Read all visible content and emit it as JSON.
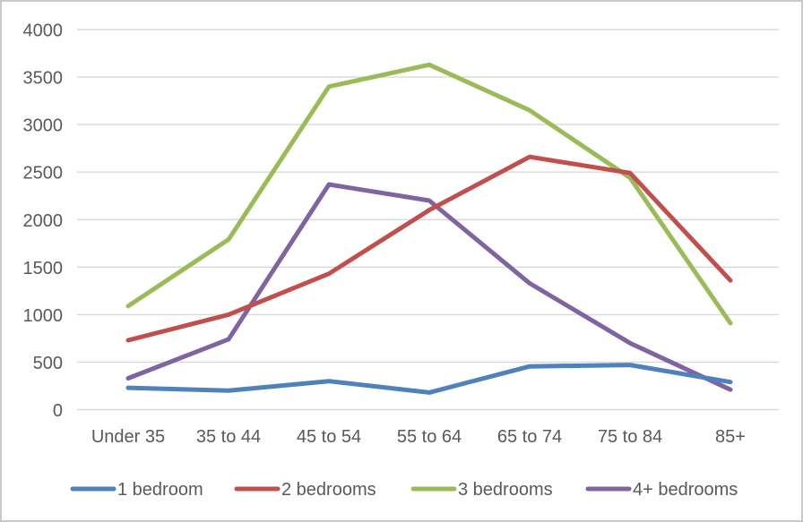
{
  "chart_data": {
    "type": "line",
    "title": "",
    "categories": [
      "Under 35",
      "35 to 44",
      "45 to 54",
      "55 to 64",
      "65 to 74",
      "75 to 84",
      "85+"
    ],
    "series": [
      {
        "name": "1 bedroom",
        "color": "#4F81BD",
        "values": [
          230,
          200,
          300,
          180,
          455,
          470,
          290
        ]
      },
      {
        "name": "2 bedrooms",
        "color": "#C0504D",
        "values": [
          730,
          1000,
          1430,
          2100,
          2660,
          2490,
          1360
        ]
      },
      {
        "name": "3 bedrooms",
        "color": "#9BBB59",
        "values": [
          1090,
          1790,
          3400,
          3630,
          3150,
          2440,
          910
        ]
      },
      {
        "name": "4+ bedrooms",
        "color": "#8064A2",
        "values": [
          330,
          740,
          2370,
          2200,
          1330,
          700,
          210
        ]
      }
    ],
    "yticks": [
      0,
      500,
      1000,
      1500,
      2000,
      2500,
      3000,
      3500,
      4000
    ],
    "ylim": [
      0,
      4000
    ],
    "xlabel": "",
    "ylabel": "",
    "grid": true,
    "legend_position": "bottom"
  },
  "colors": {
    "grid": "#D9D9D9",
    "axis_text": "#595959",
    "background": "#FFFFFF",
    "frame_border": "#C9C9C9"
  }
}
